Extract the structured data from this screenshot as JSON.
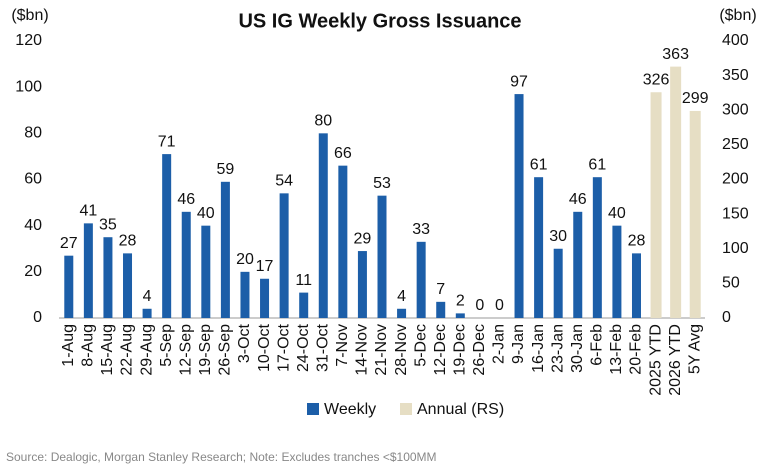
{
  "chart_data": {
    "type": "bar",
    "title": "US IG Weekly Gross Issuance",
    "y_label": "($bn)",
    "y2_label": "($bn)",
    "categories": [
      "1-Aug",
      "8-Aug",
      "15-Aug",
      "22-Aug",
      "29-Aug",
      "5-Sep",
      "12-Sep",
      "19-Sep",
      "26-Sep",
      "3-Oct",
      "10-Oct",
      "17-Oct",
      "24-Oct",
      "31-Oct",
      "7-Nov",
      "14-Nov",
      "21-Nov",
      "28-Nov",
      "5-Dec",
      "12-Dec",
      "19-Dec",
      "26-Dec",
      "2-Jan",
      "9-Jan",
      "16-Jan",
      "23-Jan",
      "30-Jan",
      "6-Feb",
      "13-Feb",
      "20-Feb",
      "2025 YTD",
      "2026 YTD",
      "5Y Avg"
    ],
    "series": [
      {
        "name": "Weekly",
        "color": "#1c5ea8",
        "values": [
          27,
          41,
          35,
          28,
          4,
          71,
          46,
          40,
          59,
          20,
          17,
          54,
          11,
          80,
          66,
          29,
          53,
          4,
          33,
          7,
          2,
          0,
          0,
          97,
          61,
          30,
          46,
          61,
          40,
          28,
          null,
          null,
          null
        ]
      },
      {
        "name": "Annual (RS)",
        "color": "#e6dec4",
        "axis": "y2",
        "values": [
          null,
          null,
          null,
          null,
          null,
          null,
          null,
          null,
          null,
          null,
          null,
          null,
          null,
          null,
          null,
          null,
          null,
          null,
          null,
          null,
          null,
          null,
          null,
          null,
          null,
          null,
          null,
          null,
          null,
          null,
          326,
          363,
          299
        ]
      }
    ],
    "ylim": [
      0,
      120
    ],
    "yticks": [
      0,
      20,
      40,
      60,
      80,
      100,
      120
    ],
    "y2lim": [
      0,
      400
    ],
    "y2ticks": [
      0,
      50,
      100,
      150,
      200,
      250,
      300,
      350,
      400
    ],
    "grid": false,
    "legend": "bottom",
    "source": "Source: Dealogic, Morgan Stanley Research; Note: Excludes tranches <$100MM"
  }
}
